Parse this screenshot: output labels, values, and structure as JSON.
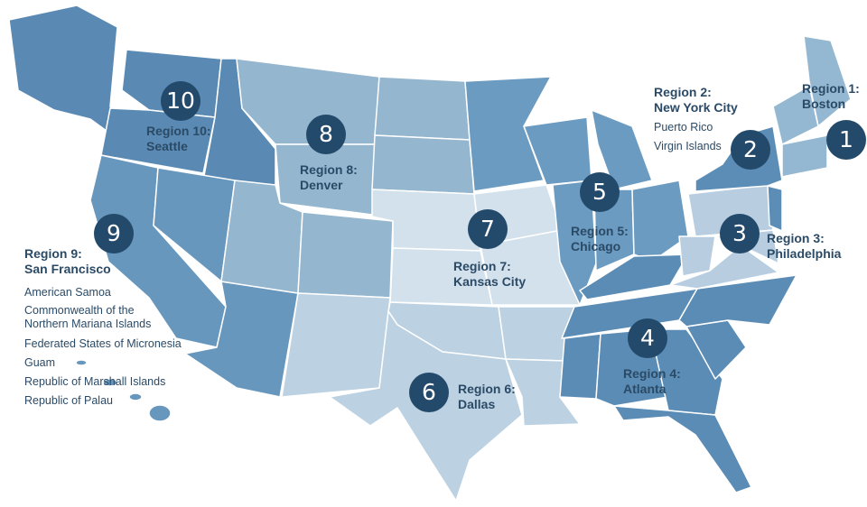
{
  "colors": {
    "marker": "#244a6b",
    "text": "#2b4a66",
    "border": "#ffffff"
  },
  "regions": [
    {
      "number": "1",
      "line1": "Region 1:",
      "line2": "Boston",
      "color": "#95b8d2",
      "territories": []
    },
    {
      "number": "2",
      "line1": "Region 2:",
      "line2": "New York City",
      "color": "#5b8db6",
      "territories": [
        "Puerto Rico",
        "Virgin Islands"
      ]
    },
    {
      "number": "3",
      "line1": "Region 3:",
      "line2": "Philadelphia",
      "color": "#b8cee0",
      "territories": []
    },
    {
      "number": "4",
      "line1": "Region 4:",
      "line2": "Atlanta",
      "color": "#5a8cb5",
      "territories": []
    },
    {
      "number": "5",
      "line1": "Region 5:",
      "line2": "Chicago",
      "color": "#6b9bc1",
      "territories": []
    },
    {
      "number": "6",
      "line1": "Region 6:",
      "line2": "Dallas",
      "color": "#bcd1e1",
      "territories": []
    },
    {
      "number": "7",
      "line1": "Region 7:",
      "line2": "Kansas City",
      "color": "#d3e1ec",
      "territories": []
    },
    {
      "number": "8",
      "line1": "Region 8:",
      "line2": "Denver",
      "color": "#94b6cf",
      "territories": []
    },
    {
      "number": "9",
      "line1": "Region 9:",
      "line2": "San Francisco",
      "color": "#6897be",
      "territories": [
        "American Samoa",
        "Commonwealth of the",
        "Northern Mariana Islands",
        "Federated States of Micronesia",
        "Guam",
        "Republic of Marshall Islands",
        "Republic of Palau"
      ]
    },
    {
      "number": "10",
      "line1": "Region 10:",
      "line2": "Seattle",
      "color": "#5a8ab3",
      "territories": []
    }
  ]
}
